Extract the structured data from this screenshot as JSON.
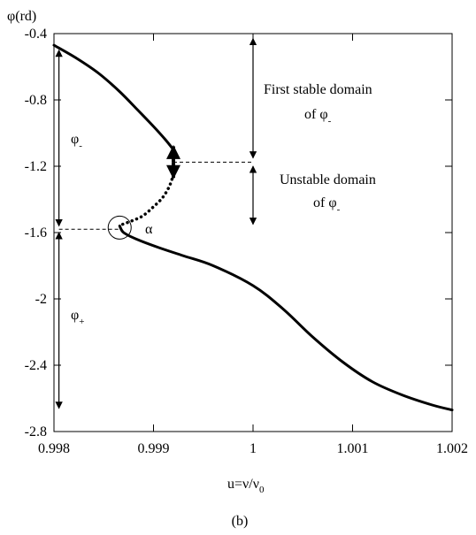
{
  "chart_data": {
    "type": "line",
    "ylabel": "φ(rd)",
    "xlabel": "u=ν/ν",
    "xlabel_sub": "0",
    "caption": "(b)",
    "xlim": [
      0.998,
      1.002
    ],
    "ylim": [
      -2.8,
      -0.4
    ],
    "x_ticks": [
      {
        "value": 0.998,
        "label": "0.998"
      },
      {
        "value": 0.999,
        "label": "0.999"
      },
      {
        "value": 1.0,
        "label": "1"
      },
      {
        "value": 1.001,
        "label": "1.001"
      },
      {
        "value": 1.002,
        "label": "1.002"
      }
    ],
    "y_ticks": [
      {
        "value": -0.4,
        "label": "-0.4"
      },
      {
        "value": -0.8,
        "label": "-0.8"
      },
      {
        "value": -1.2,
        "label": "-1.2"
      },
      {
        "value": -1.6,
        "label": "-1.6"
      },
      {
        "value": -2.0,
        "label": "-2"
      },
      {
        "value": -2.4,
        "label": "-2.4"
      },
      {
        "value": -2.8,
        "label": "-2.8"
      }
    ],
    "grid": false,
    "series": [
      {
        "style": "solid",
        "x": [
          0.998,
          0.99823,
          0.99845,
          0.99866,
          0.99884,
          0.999,
          0.99912,
          0.9992
        ],
        "y": [
          -0.47,
          -0.55,
          -0.64,
          -0.75,
          -0.86,
          -0.96,
          -1.04,
          -1.1
        ]
      },
      {
        "style": "dotted",
        "x": [
          0.9992,
          0.99916,
          0.99909,
          0.99899,
          0.99889,
          0.99878,
          0.99869,
          0.99866
        ],
        "y": [
          -1.25,
          -1.32,
          -1.39,
          -1.45,
          -1.5,
          -1.53,
          -1.55,
          -1.56
        ]
      },
      {
        "style": "solid",
        "x": [
          0.99866,
          0.9987,
          0.99883,
          0.99905,
          0.9993,
          0.9996,
          1.0,
          1.0003,
          1.0006,
          1.0009,
          1.0012,
          1.0015,
          1.0018,
          1.002
        ],
        "y": [
          -1.56,
          -1.6,
          -1.64,
          -1.69,
          -1.74,
          -1.8,
          -1.92,
          -2.06,
          -2.23,
          -2.38,
          -2.5,
          -2.58,
          -2.64,
          -2.67
        ]
      }
    ],
    "annotations": {
      "phi_minus": {
        "main": "φ",
        "sub": "-"
      },
      "phi_plus": {
        "main": "φ",
        "sub": "+"
      },
      "alpha": "α",
      "stable_line1": "First stable domain",
      "stable_line2": {
        "main": "of φ",
        "sub": "-"
      },
      "unstable_line1": "Unstable domain",
      "unstable_line2": {
        "main": "of φ",
        "sub": "-"
      }
    }
  }
}
